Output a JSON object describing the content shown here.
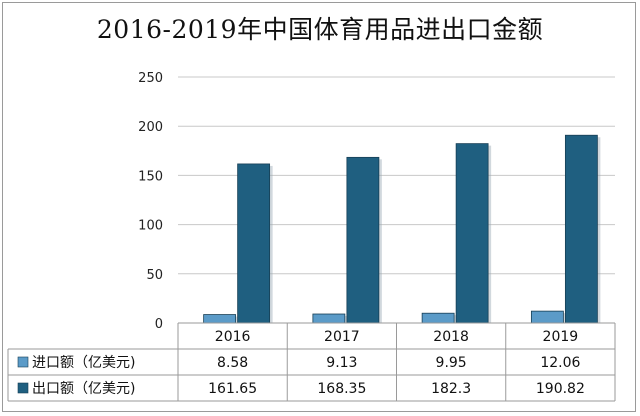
{
  "chart_data": {
    "type": "bar",
    "title": "2016-2019年中国体育用品进出口金额",
    "categories": [
      "2016",
      "2017",
      "2018",
      "2019"
    ],
    "series": [
      {
        "name": "进口额（亿美元)",
        "values": [
          8.58,
          9.13,
          9.95,
          12.06
        ],
        "color": "#5b9bc8"
      },
      {
        "name": "出口额（亿美元)",
        "values": [
          161.65,
          168.35,
          182.3,
          190.82
        ],
        "color": "#1f5f80"
      }
    ],
    "table_rows": [
      [
        "8.58",
        "9.13",
        "9.95",
        "12.06"
      ],
      [
        "161.65",
        "168.35",
        "182.3",
        "190.82"
      ]
    ],
    "yticks": [
      "0",
      "50",
      "100",
      "150",
      "200",
      "250"
    ],
    "ylim": [
      0,
      250
    ],
    "grid": true,
    "legend_placement": "data-table"
  }
}
